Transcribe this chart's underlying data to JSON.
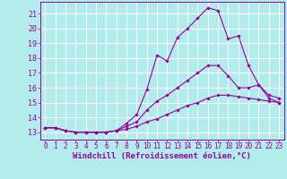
{
  "background_color": "#b2ebeb",
  "grid_color": "#ffffff",
  "line_color": "#990099",
  "xlabel": "Windchill (Refroidissement éolien,°C)",
  "xlabel_fontsize": 6.5,
  "xtick_fontsize": 5.5,
  "ytick_fontsize": 6,
  "xlim": [
    -0.5,
    23.5
  ],
  "ylim": [
    12.5,
    21.8
  ],
  "yticks": [
    13,
    14,
    15,
    16,
    17,
    18,
    19,
    20,
    21
  ],
  "xticks": [
    0,
    1,
    2,
    3,
    4,
    5,
    6,
    7,
    8,
    9,
    10,
    11,
    12,
    13,
    14,
    15,
    16,
    17,
    18,
    19,
    20,
    21,
    22,
    23
  ],
  "series": [
    {
      "x": [
        0,
        1,
        2,
        3,
        4,
        5,
        6,
        7,
        8,
        9,
        10,
        11,
        12,
        13,
        14,
        15,
        16,
        17,
        18,
        19,
        20,
        21,
        22,
        23
      ],
      "y": [
        13.3,
        13.3,
        13.1,
        13.0,
        13.0,
        13.0,
        13.0,
        13.1,
        13.6,
        14.2,
        15.9,
        18.2,
        17.8,
        19.4,
        20.0,
        20.7,
        21.4,
        21.2,
        19.3,
        19.5,
        17.5,
        16.2,
        15.3,
        15.0
      ]
    },
    {
      "x": [
        0,
        1,
        2,
        3,
        4,
        5,
        6,
        7,
        8,
        9,
        10,
        11,
        12,
        13,
        14,
        15,
        16,
        17,
        18,
        19,
        20,
        21,
        22,
        23
      ],
      "y": [
        13.3,
        13.3,
        13.1,
        13.0,
        13.0,
        13.0,
        13.0,
        13.1,
        13.4,
        13.7,
        14.5,
        15.1,
        15.5,
        16.0,
        16.5,
        17.0,
        17.5,
        17.5,
        16.8,
        16.0,
        16.0,
        16.2,
        15.5,
        15.3
      ]
    },
    {
      "x": [
        0,
        1,
        2,
        3,
        4,
        5,
        6,
        7,
        8,
        9,
        10,
        11,
        12,
        13,
        14,
        15,
        16,
        17,
        18,
        19,
        20,
        21,
        22,
        23
      ],
      "y": [
        13.3,
        13.3,
        13.1,
        13.0,
        13.0,
        13.0,
        13.0,
        13.1,
        13.2,
        13.4,
        13.7,
        13.9,
        14.2,
        14.5,
        14.8,
        15.0,
        15.3,
        15.5,
        15.5,
        15.4,
        15.3,
        15.2,
        15.1,
        15.0
      ]
    }
  ]
}
